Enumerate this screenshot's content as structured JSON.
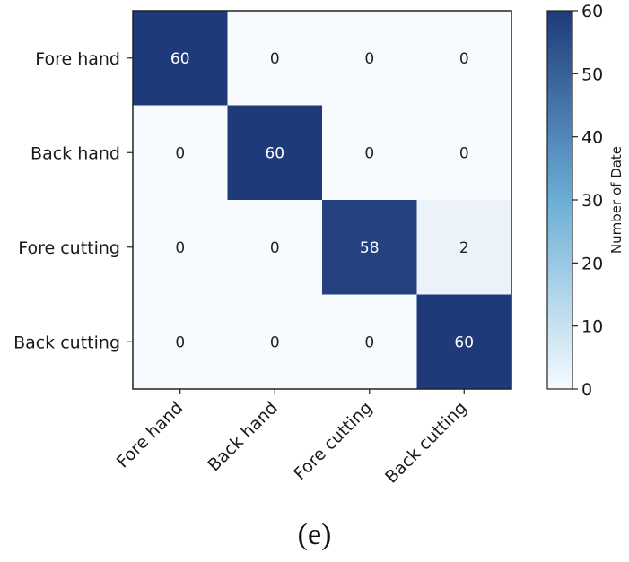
{
  "caption": "(e)",
  "chart_data": {
    "type": "heatmap",
    "row_labels": [
      "Fore hand",
      "Back hand",
      "Fore cutting",
      "Back cutting"
    ],
    "col_labels": [
      "Fore hand",
      "Back hand",
      "Fore cutting",
      "Back cutting"
    ],
    "values": [
      [
        60,
        0,
        0,
        0
      ],
      [
        0,
        60,
        0,
        0
      ],
      [
        0,
        0,
        58,
        2
      ],
      [
        0,
        0,
        0,
        60
      ]
    ],
    "colorbar": {
      "label": "Number of Date",
      "min": 0,
      "max": 60,
      "ticks": [
        0,
        10,
        20,
        30,
        40,
        50,
        60
      ]
    },
    "colormap": {
      "low": "#f7fbff",
      "mid": "#6baed6",
      "high": "#1f3a7a"
    }
  }
}
